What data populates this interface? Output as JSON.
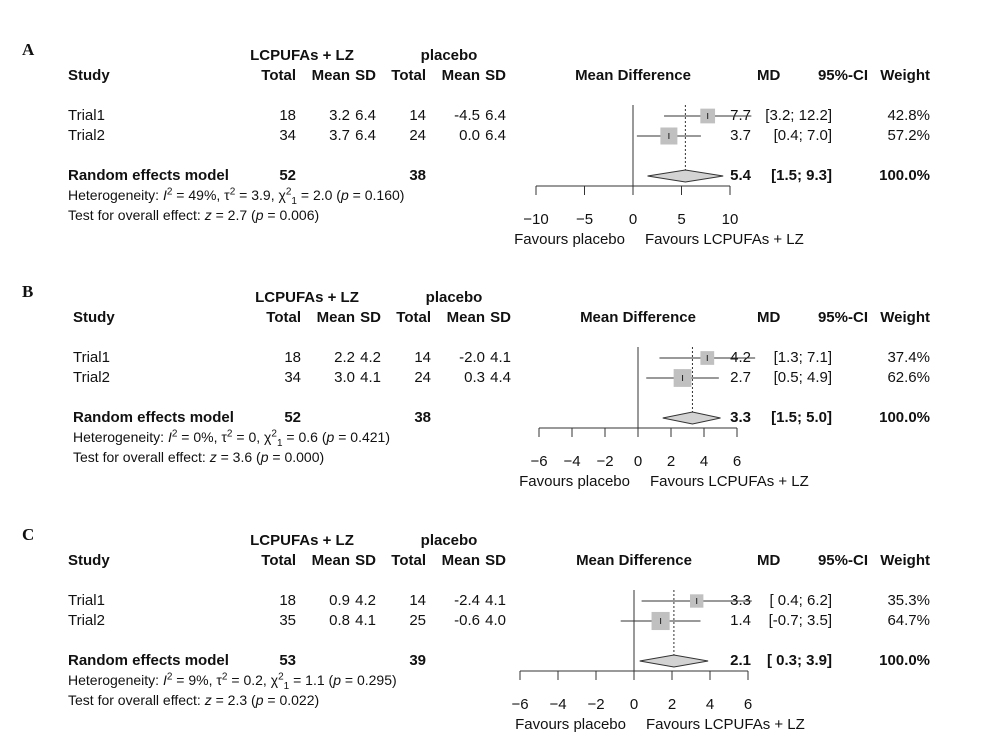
{
  "chart_data": [
    {
      "type": "forest",
      "panel_label": "A",
      "group_headers": {
        "treatment": "LCPUFAs + LZ",
        "control": "placebo"
      },
      "column_headers": {
        "study": "Study",
        "t_total": "Total",
        "t_mean": "Mean",
        "t_sd": "SD",
        "c_total": "Total",
        "c_mean": "Mean",
        "c_sd": "SD",
        "plot": "Mean Difference",
        "md": "MD",
        "ci": "95%-CI",
        "weight": "Weight"
      },
      "studies": [
        {
          "name": "Trial1",
          "t_total": "18",
          "t_mean": "3.2",
          "t_sd": "6.4",
          "c_total": "14",
          "c_mean": "-4.5",
          "c_sd": "6.4",
          "md": 7.7,
          "lower": 3.2,
          "upper": 12.2,
          "md_text": "7.7",
          "ci_text": "[3.2; 12.2]",
          "weight_text": "42.8%",
          "weight": 42.8
        },
        {
          "name": "Trial2",
          "t_total": "34",
          "t_mean": "3.7",
          "t_sd": "6.4",
          "c_total": "24",
          "c_mean": "0.0",
          "c_sd": "6.4",
          "md": 3.7,
          "lower": 0.4,
          "upper": 7.0,
          "md_text": "3.7",
          "ci_text": "[0.4; 7.0]",
          "weight_text": "57.2%",
          "weight": 57.2
        }
      ],
      "summary": {
        "name": "Random effects model",
        "t_total": "52",
        "c_total": "38",
        "md": 5.4,
        "lower": 1.5,
        "upper": 9.3,
        "md_text": "5.4",
        "ci_text": "[1.5; 9.3]",
        "weight_text": "100.0%"
      },
      "heterogeneity": {
        "label": "Heterogeneity:",
        "I2": "49%",
        "tau2": "3.9",
        "chi2": "2.0",
        "df": "1",
        "p": "0.160"
      },
      "overall": {
        "label": "Test for overall effect:",
        "z": "2.7",
        "p": "0.006"
      },
      "xticks": [
        -10,
        -5,
        0,
        5,
        10
      ],
      "xtick_labels": [
        "−10",
        "−5",
        "0",
        "5",
        "10"
      ],
      "xlim": [
        -10,
        10
      ],
      "favours_left": "Favours placebo",
      "favours_right": "Favours LCPUFAs + LZ"
    },
    {
      "type": "forest",
      "panel_label": "B",
      "group_headers": {
        "treatment": "LCPUFAs + LZ",
        "control": "placebo"
      },
      "column_headers": {
        "study": "Study",
        "t_total": "Total",
        "t_mean": "Mean",
        "t_sd": "SD",
        "c_total": "Total",
        "c_mean": "Mean",
        "c_sd": "SD",
        "plot": "Mean Difference",
        "md": "MD",
        "ci": "95%-CI",
        "weight": "Weight"
      },
      "studies": [
        {
          "name": "Trial1",
          "t_total": "18",
          "t_mean": "2.2",
          "t_sd": "4.2",
          "c_total": "14",
          "c_mean": "-2.0",
          "c_sd": "4.1",
          "md": 4.2,
          "lower": 1.3,
          "upper": 7.1,
          "md_text": "4.2",
          "ci_text": "[1.3; 7.1]",
          "weight_text": "37.4%",
          "weight": 37.4
        },
        {
          "name": "Trial2",
          "t_total": "34",
          "t_mean": "3.0",
          "t_sd": "4.1",
          "c_total": "24",
          "c_mean": "0.3",
          "c_sd": "4.4",
          "md": 2.7,
          "lower": 0.5,
          "upper": 4.9,
          "md_text": "2.7",
          "ci_text": "[0.5; 4.9]",
          "weight_text": "62.6%",
          "weight": 62.6
        }
      ],
      "summary": {
        "name": "Random effects model",
        "t_total": "52",
        "c_total": "38",
        "md": 3.3,
        "lower": 1.5,
        "upper": 5.0,
        "md_text": "3.3",
        "ci_text": "[1.5; 5.0]",
        "weight_text": "100.0%"
      },
      "heterogeneity": {
        "label": "Heterogeneity:",
        "I2": "0%",
        "tau2": "0",
        "chi2": "0.6",
        "df": "1",
        "p": "0.421"
      },
      "overall": {
        "label": "Test for overall effect:",
        "z": "3.6",
        "p": "0.000"
      },
      "xticks": [
        -6,
        -4,
        -2,
        0,
        2,
        4,
        6
      ],
      "xtick_labels": [
        "−6",
        "−4",
        "−2",
        "0",
        "2",
        "4",
        "6"
      ],
      "xlim": [
        -6,
        6
      ],
      "favours_left": "Favours placebo",
      "favours_right": "Favours LCPUFAs + LZ"
    },
    {
      "type": "forest",
      "panel_label": "C",
      "group_headers": {
        "treatment": "LCPUFAs + LZ",
        "control": "placebo"
      },
      "column_headers": {
        "study": "Study",
        "t_total": "Total",
        "t_mean": "Mean",
        "t_sd": "SD",
        "c_total": "Total",
        "c_mean": "Mean",
        "c_sd": "SD",
        "plot": "Mean Difference",
        "md": "MD",
        "ci": "95%-CI",
        "weight": "Weight"
      },
      "studies": [
        {
          "name": "Trial1",
          "t_total": "18",
          "t_mean": "0.9",
          "t_sd": "4.2",
          "c_total": "14",
          "c_mean": "-2.4",
          "c_sd": "4.1",
          "md": 3.3,
          "lower": 0.4,
          "upper": 6.2,
          "md_text": "3.3",
          "ci_text": "[ 0.4; 6.2]",
          "weight_text": "35.3%",
          "weight": 35.3
        },
        {
          "name": "Trial2",
          "t_total": "35",
          "t_mean": "0.8",
          "t_sd": "4.1",
          "c_total": "25",
          "c_mean": "-0.6",
          "c_sd": "4.0",
          "md": 1.4,
          "lower": -0.7,
          "upper": 3.5,
          "md_text": "1.4",
          "ci_text": "[-0.7; 3.5]",
          "weight_text": "64.7%",
          "weight": 64.7
        }
      ],
      "summary": {
        "name": "Random effects model",
        "t_total": "53",
        "c_total": "39",
        "md": 2.1,
        "lower": 0.3,
        "upper": 3.9,
        "md_text": "2.1",
        "ci_text": "[ 0.3; 3.9]",
        "weight_text": "100.0%"
      },
      "heterogeneity": {
        "label": "Heterogeneity:",
        "I2": "9%",
        "tau2": "0.2",
        "chi2": "1.1",
        "df": "1",
        "p": "0.295"
      },
      "overall": {
        "label": "Test for overall effect:",
        "z": "2.3",
        "p": "0.022"
      },
      "xticks": [
        -6,
        -4,
        -2,
        0,
        2,
        4,
        6
      ],
      "xtick_labels": [
        "−6",
        "−4",
        "−2",
        "0",
        "2",
        "4",
        "6"
      ],
      "xlim": [
        -6,
        6
      ],
      "favours_left": "Favours placebo",
      "favours_right": "Favours LCPUFAs + LZ"
    }
  ],
  "colors": {
    "square": "#c0c0c0",
    "diamond": "#d3d3d3",
    "line": "#333333"
  }
}
